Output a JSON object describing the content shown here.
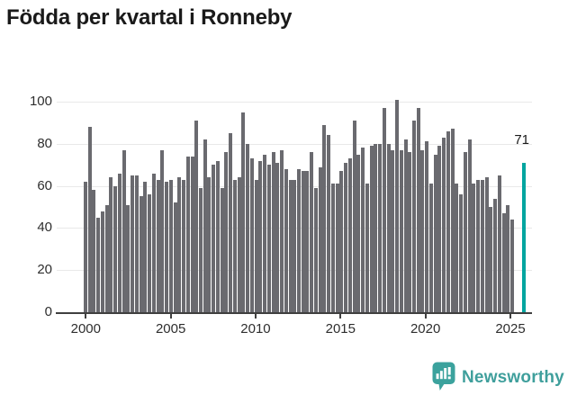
{
  "title": "Födda per kvartal i Ronneby",
  "annotation": {
    "value_label": "71"
  },
  "footer": {
    "brand": "Newsworthy",
    "logo_icon": "newsworthy-bar-chart-bubble-icon"
  },
  "chart_data": {
    "type": "bar",
    "title": "Födda per kvartal i Ronneby",
    "x_start": "2000-Q1",
    "x_frequency": "quarterly",
    "values": [
      62,
      88,
      58,
      45,
      48,
      51,
      64,
      60,
      66,
      77,
      51,
      65,
      65,
      55,
      62,
      56,
      66,
      63,
      77,
      62,
      63,
      52,
      64,
      63,
      74,
      74,
      91,
      59,
      82,
      64,
      70,
      72,
      59,
      76,
      85,
      63,
      64,
      95,
      80,
      73,
      63,
      72,
      75,
      70,
      76,
      71,
      77,
      68,
      63,
      63,
      68,
      67,
      67,
      76,
      59,
      69,
      89,
      84,
      61,
      61,
      67,
      71,
      73,
      91,
      75,
      78,
      61,
      79,
      80,
      80,
      97,
      80,
      77,
      101,
      77,
      82,
      76,
      91,
      97,
      77,
      81,
      61,
      75,
      79,
      83,
      86,
      87,
      61,
      56,
      76,
      82,
      61,
      63,
      63,
      64,
      50,
      54,
      65,
      47,
      51,
      44
    ],
    "highlight": {
      "value": 71,
      "label": "71",
      "period": "2025-Q2"
    },
    "x_tick_labels": [
      "2000",
      "2005",
      "2010",
      "2015",
      "2020",
      "2025"
    ],
    "y_ticks": [
      0,
      20,
      40,
      60,
      80,
      100
    ],
    "ylim": [
      0,
      100
    ],
    "grid": "horizontal",
    "legend": "none",
    "colors": {
      "bar": "#6a6a6f",
      "highlight": "#00a5a0",
      "grid": "#e9e9e9",
      "axis": "#3f3f3f",
      "tick_text": "#2e2e2e",
      "title_text": "#1a1a1a",
      "brand": "#3f9f9c"
    }
  }
}
